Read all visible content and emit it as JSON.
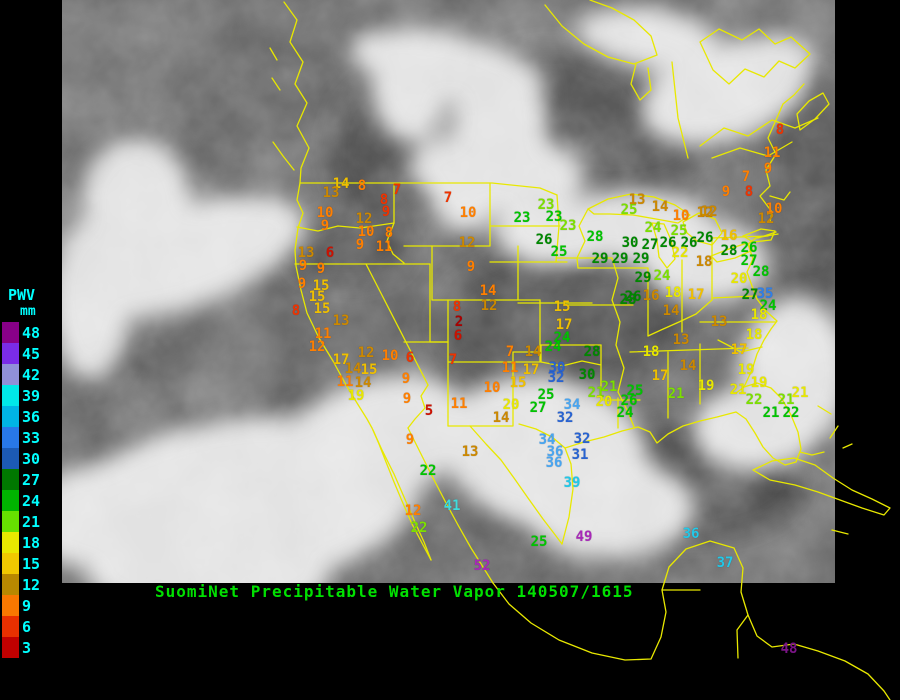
{
  "header": {
    "caption": "SuomiNet Precipitable Water Vapor 140507/1615",
    "caption_color": "#00e000"
  },
  "legend": {
    "title": "PWV",
    "unit": "mm",
    "label_color": "#00ffff",
    "entries": [
      {
        "value": "48",
        "color": "#880088"
      },
      {
        "value": "45",
        "color": "#7a2ce8"
      },
      {
        "value": "42",
        "color": "#9090d8"
      },
      {
        "value": "39",
        "color": "#00e8e8"
      },
      {
        "value": "36",
        "color": "#00b4e4"
      },
      {
        "value": "33",
        "color": "#2878e8"
      },
      {
        "value": "30",
        "color": "#1c5ab4"
      },
      {
        "value": "27",
        "color": "#007800"
      },
      {
        "value": "24",
        "color": "#00b400"
      },
      {
        "value": "21",
        "color": "#66e000"
      },
      {
        "value": "18",
        "color": "#e8e800"
      },
      {
        "value": "15",
        "color": "#f0c800"
      },
      {
        "value": "12",
        "color": "#b88800"
      },
      {
        "value": "9",
        "color": "#f87800"
      },
      {
        "value": "6",
        "color": "#e83000"
      },
      {
        "value": "3",
        "color": "#c00000"
      }
    ]
  },
  "map": {
    "border_color": "#e8e800",
    "sea_gray": "#7e7e7e",
    "background": "#000000"
  },
  "palette": {
    "r3d": "#aa0000",
    "r3": "#cc1100",
    "r6": "#ee3300",
    "o9": "#ff7f00",
    "o12": "#cc8800",
    "y15": "#f0c000",
    "y18": "#e8e800",
    "g21": "#7ce000",
    "g24": "#00c400",
    "g27": "#008800",
    "b30": "#2863d2",
    "b33": "#2f7fe8",
    "b36": "#49a5f0",
    "cy39": "#22c8e8",
    "cy41": "#40dcdc",
    "p49": "#a828b8",
    "p48": "#7a1486"
  },
  "stations": [
    [
      "14",
      341,
      184,
      "y15"
    ],
    [
      "8",
      362,
      186,
      "o9"
    ],
    [
      "13",
      331,
      193,
      "o12"
    ],
    [
      "7",
      397,
      190,
      "r6"
    ],
    [
      "10",
      325,
      213,
      "o9"
    ],
    [
      "9",
      325,
      226,
      "o9"
    ],
    [
      "8",
      384,
      200,
      "r6"
    ],
    [
      "9",
      386,
      212,
      "r6"
    ],
    [
      "12",
      364,
      219,
      "o12"
    ],
    [
      "10",
      366,
      232,
      "o9"
    ],
    [
      "9",
      360,
      245,
      "o9"
    ],
    [
      "8",
      389,
      233,
      "o9"
    ],
    [
      "11",
      384,
      247,
      "o9"
    ],
    [
      "7",
      448,
      198,
      "r6"
    ],
    [
      "10",
      468,
      213,
      "o9"
    ],
    [
      "12",
      467,
      243,
      "o12"
    ],
    [
      "9",
      471,
      267,
      "o9"
    ],
    [
      "13",
      306,
      253,
      "o12"
    ],
    [
      "6",
      330,
      253,
      "r3"
    ],
    [
      "9",
      303,
      266,
      "o9"
    ],
    [
      "9",
      321,
      269,
      "o9"
    ],
    [
      "9",
      302,
      284,
      "o9"
    ],
    [
      "15",
      321,
      286,
      "y15"
    ],
    [
      "15",
      317,
      297,
      "y15"
    ],
    [
      "8",
      296,
      311,
      "r6"
    ],
    [
      "15",
      322,
      309,
      "y15"
    ],
    [
      "13",
      341,
      321,
      "o12"
    ],
    [
      "11",
      323,
      334,
      "o9"
    ],
    [
      "12",
      317,
      347,
      "o9"
    ],
    [
      "17",
      341,
      360,
      "y15"
    ],
    [
      "12",
      366,
      353,
      "o12"
    ],
    [
      "10",
      390,
      356,
      "o9"
    ],
    [
      "6",
      410,
      358,
      "r6"
    ],
    [
      "14",
      353,
      369,
      "o12"
    ],
    [
      "15",
      369,
      370,
      "y15"
    ],
    [
      "11",
      345,
      382,
      "o9"
    ],
    [
      "14",
      363,
      383,
      "o12"
    ],
    [
      "19",
      356,
      396,
      "y18"
    ],
    [
      "9",
      406,
      379,
      "o9"
    ],
    [
      "9",
      407,
      399,
      "o9"
    ],
    [
      "5",
      429,
      411,
      "r3"
    ],
    [
      "8",
      457,
      307,
      "r6"
    ],
    [
      "2",
      459,
      322,
      "r3d"
    ],
    [
      "6",
      458,
      336,
      "r3"
    ],
    [
      "14",
      488,
      291,
      "o9"
    ],
    [
      "12",
      489,
      306,
      "o12"
    ],
    [
      "7",
      453,
      360,
      "r6"
    ],
    [
      "11",
      459,
      404,
      "o9"
    ],
    [
      "9",
      410,
      440,
      "o9"
    ],
    [
      "13",
      470,
      452,
      "o12"
    ],
    [
      "22",
      428,
      471,
      "g24"
    ],
    [
      "12",
      413,
      511,
      "o9"
    ],
    [
      "22",
      419,
      528,
      "g21"
    ],
    [
      "41",
      452,
      506,
      "cy41"
    ],
    [
      "52",
      482,
      566,
      "p49"
    ],
    [
      "23",
      546,
      205,
      "g21"
    ],
    [
      "23",
      522,
      218,
      "g24"
    ],
    [
      "23",
      554,
      217,
      "g24"
    ],
    [
      "23",
      568,
      226,
      "g21"
    ],
    [
      "26",
      544,
      240,
      "g27"
    ],
    [
      "28",
      595,
      237,
      "g24"
    ],
    [
      "25",
      559,
      252,
      "g24"
    ],
    [
      "15",
      562,
      307,
      "y15"
    ],
    [
      "25",
      629,
      210,
      "g21"
    ],
    [
      "13",
      637,
      200,
      "o12"
    ],
    [
      "14",
      660,
      207,
      "o12"
    ],
    [
      "10",
      681,
      216,
      "o9"
    ],
    [
      "12",
      705,
      213,
      "o12"
    ],
    [
      "24",
      653,
      228,
      "g21"
    ],
    [
      "25",
      679,
      231,
      "g21"
    ],
    [
      "30",
      630,
      243,
      "g27"
    ],
    [
      "27",
      650,
      245,
      "g27"
    ],
    [
      "26",
      668,
      243,
      "g27"
    ],
    [
      "26",
      689,
      243,
      "g27"
    ],
    [
      "29",
      600,
      259,
      "g27"
    ],
    [
      "29",
      620,
      259,
      "g27"
    ],
    [
      "29",
      641,
      259,
      "g27"
    ],
    [
      "29",
      643,
      278,
      "g27"
    ],
    [
      "24",
      662,
      276,
      "g21"
    ],
    [
      "26",
      633,
      297,
      "g27"
    ],
    [
      "16",
      651,
      296,
      "o12"
    ],
    [
      "18",
      673,
      293,
      "y18"
    ],
    [
      "17",
      696,
      295,
      "y15"
    ],
    [
      "8",
      780,
      130,
      "r6"
    ],
    [
      "11",
      772,
      153,
      "o9"
    ],
    [
      "9",
      768,
      169,
      "o9"
    ],
    [
      "7",
      746,
      177,
      "o9"
    ],
    [
      "9",
      726,
      192,
      "o9"
    ],
    [
      "8",
      749,
      192,
      "r6"
    ],
    [
      "12",
      709,
      212,
      "o12"
    ],
    [
      "10",
      774,
      209,
      "o9"
    ],
    [
      "12",
      766,
      219,
      "o12"
    ],
    [
      "26",
      705,
      238,
      "g27"
    ],
    [
      "16",
      729,
      236,
      "y15"
    ],
    [
      "28",
      729,
      251,
      "g27"
    ],
    [
      "26",
      749,
      248,
      "g24"
    ],
    [
      "27",
      749,
      261,
      "g24"
    ],
    [
      "18",
      704,
      262,
      "o12"
    ],
    [
      "22",
      680,
      253,
      "y18"
    ],
    [
      "28",
      761,
      272,
      "g24"
    ],
    [
      "20",
      739,
      279,
      "y18"
    ],
    [
      "27",
      750,
      295,
      "g27"
    ],
    [
      "35",
      765,
      294,
      "b33"
    ],
    [
      "24",
      768,
      306,
      "g24"
    ],
    [
      "14",
      671,
      311,
      "o12"
    ],
    [
      "13",
      719,
      322,
      "o12"
    ],
    [
      "18",
      759,
      315,
      "y18"
    ],
    [
      "18",
      754,
      335,
      "y18"
    ],
    [
      "13",
      681,
      340,
      "o12"
    ],
    [
      "18",
      651,
      352,
      "y18"
    ],
    [
      "17",
      739,
      350,
      "y15"
    ],
    [
      "14",
      688,
      366,
      "o12"
    ],
    [
      "17",
      660,
      376,
      "y15"
    ],
    [
      "19",
      746,
      370,
      "y18"
    ],
    [
      "19",
      706,
      386,
      "y18"
    ],
    [
      "19",
      759,
      383,
      "y18"
    ],
    [
      "21",
      738,
      390,
      "y18"
    ],
    [
      "21",
      676,
      394,
      "g21"
    ],
    [
      "25",
      635,
      391,
      "g24"
    ],
    [
      "26",
      629,
      401,
      "g24"
    ],
    [
      "24",
      625,
      413,
      "g24"
    ],
    [
      "22",
      754,
      400,
      "g21"
    ],
    [
      "21",
      800,
      393,
      "y18"
    ],
    [
      "21",
      786,
      400,
      "g21"
    ],
    [
      "21",
      771,
      413,
      "g24"
    ],
    [
      "22",
      791,
      413,
      "g24"
    ],
    [
      "17",
      564,
      325,
      "y15"
    ],
    [
      "24",
      562,
      338,
      "g24"
    ],
    [
      "24",
      553,
      347,
      "g24"
    ],
    [
      "28",
      592,
      352,
      "g27"
    ],
    [
      "28",
      628,
      300,
      "g27"
    ],
    [
      "7",
      510,
      352,
      "o9"
    ],
    [
      "14",
      533,
      352,
      "o12"
    ],
    [
      "11",
      510,
      368,
      "o9"
    ],
    [
      "17",
      531,
      370,
      "y15"
    ],
    [
      "30",
      557,
      368,
      "b30"
    ],
    [
      "32",
      556,
      378,
      "b30"
    ],
    [
      "30",
      587,
      375,
      "g27"
    ],
    [
      "15",
      518,
      383,
      "y15"
    ],
    [
      "10",
      492,
      388,
      "o9"
    ],
    [
      "25",
      546,
      395,
      "g24"
    ],
    [
      "27",
      538,
      408,
      "g24"
    ],
    [
      "21",
      609,
      387,
      "g21"
    ],
    [
      "21",
      596,
      393,
      "g21"
    ],
    [
      "20",
      604,
      402,
      "y18"
    ],
    [
      "34",
      572,
      405,
      "b36"
    ],
    [
      "32",
      565,
      418,
      "b30"
    ],
    [
      "20",
      511,
      405,
      "y18"
    ],
    [
      "14",
      501,
      418,
      "o12"
    ],
    [
      "34",
      547,
      440,
      "b36"
    ],
    [
      "32",
      582,
      439,
      "b30"
    ],
    [
      "36",
      555,
      452,
      "b36"
    ],
    [
      "31",
      580,
      455,
      "b30"
    ],
    [
      "36",
      554,
      463,
      "b36"
    ],
    [
      "39",
      572,
      483,
      "cy39"
    ],
    [
      "25",
      539,
      542,
      "g24"
    ],
    [
      "49",
      584,
      537,
      "p49"
    ],
    [
      "36",
      691,
      534,
      "cy39"
    ],
    [
      "37",
      725,
      563,
      "cy39"
    ],
    [
      "48",
      789,
      649,
      "p48"
    ]
  ]
}
